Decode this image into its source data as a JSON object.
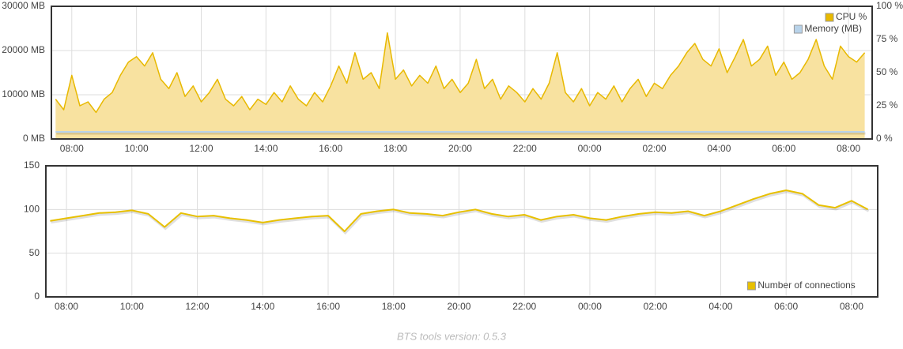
{
  "chart_data": [
    {
      "type": "line",
      "x": [
        7.5,
        7.75,
        8,
        8.25,
        8.5,
        8.75,
        9,
        9.25,
        9.5,
        9.75,
        10,
        10.25,
        10.5,
        10.75,
        11,
        11.25,
        11.5,
        11.75,
        12,
        12.25,
        12.5,
        12.75,
        13,
        13.25,
        13.5,
        13.75,
        14,
        14.25,
        14.5,
        14.75,
        15,
        15.25,
        15.5,
        15.75,
        16,
        16.25,
        16.5,
        16.75,
        17,
        17.25,
        17.5,
        17.75,
        18,
        18.25,
        18.5,
        18.75,
        19,
        19.25,
        19.5,
        19.75,
        20,
        20.25,
        20.5,
        20.75,
        21,
        21.25,
        21.5,
        21.75,
        22,
        22.25,
        22.5,
        22.75,
        23,
        23.25,
        23.5,
        23.75,
        24,
        24.25,
        24.5,
        24.75,
        25,
        25.25,
        25.5,
        25.75,
        26,
        26.25,
        26.5,
        26.75,
        27,
        27.25,
        27.5,
        27.75,
        28,
        28.25,
        28.5,
        28.75,
        29,
        29.25,
        29.5,
        29.75,
        30,
        30.25,
        30.5,
        30.75,
        31,
        31.25,
        31.5,
        31.75,
        32,
        32.25,
        32.5
      ],
      "series": [
        {
          "name": "CPU %",
          "color": "#e8b900",
          "fill": "#f8e2a0",
          "axis": "y2",
          "values": [
            30,
            22,
            48,
            25,
            28,
            20,
            30,
            35,
            48,
            58,
            62,
            55,
            65,
            45,
            38,
            50,
            32,
            40,
            28,
            35,
            45,
            30,
            25,
            32,
            22,
            30,
            26,
            35,
            28,
            40,
            30,
            25,
            35,
            28,
            40,
            55,
            42,
            65,
            45,
            50,
            38,
            80,
            45,
            52,
            40,
            48,
            42,
            55,
            38,
            45,
            35,
            42,
            60,
            38,
            45,
            30,
            40,
            35,
            28,
            38,
            30,
            42,
            65,
            35,
            28,
            38,
            25,
            35,
            30,
            40,
            28,
            38,
            45,
            32,
            42,
            38,
            48,
            55,
            65,
            72,
            60,
            55,
            68,
            50,
            62,
            75,
            55,
            60,
            70,
            48,
            58,
            45,
            50,
            60,
            75,
            55,
            45,
            70,
            62,
            58,
            65
          ]
        },
        {
          "name": "Memory (MB)",
          "color": "#b8d3ea",
          "values": [
            1600,
            1600,
            1600,
            1600,
            1600,
            1600,
            1600,
            1600,
            1600,
            1600,
            1600,
            1600,
            1600,
            1600,
            1600,
            1600,
            1600,
            1600,
            1600,
            1600,
            1600,
            1600,
            1600,
            1600,
            1600,
            1600,
            1600,
            1600,
            1600,
            1600,
            1600,
            1600,
            1600,
            1600,
            1600,
            1600,
            1600,
            1600,
            1600,
            1600,
            1600,
            1600,
            1600,
            1600,
            1600,
            1600,
            1600,
            1600,
            1600,
            1600,
            1600,
            1600,
            1600,
            1600,
            1600,
            1600,
            1600,
            1600,
            1600,
            1600,
            1600,
            1600,
            1600,
            1600,
            1600,
            1600,
            1600,
            1600,
            1600,
            1600,
            1600,
            1600,
            1600,
            1600,
            1600,
            1600,
            1600,
            1600,
            1600,
            1600,
            1600,
            1600,
            1600,
            1600,
            1600,
            1600,
            1600,
            1600,
            1600,
            1600,
            1600,
            1600,
            1600,
            1600,
            1600,
            1600,
            1600,
            1600,
            1600,
            1600,
            1600
          ]
        }
      ],
      "xlim": [
        7.37,
        32.73
      ],
      "xticks": [
        {
          "value": 8,
          "label": "08:00"
        },
        {
          "value": 10,
          "label": "10:00"
        },
        {
          "value": 12,
          "label": "12:00"
        },
        {
          "value": 14,
          "label": "14:00"
        },
        {
          "value": 16,
          "label": "16:00"
        },
        {
          "value": 18,
          "label": "18:00"
        },
        {
          "value": 20,
          "label": "20:00"
        },
        {
          "value": 22,
          "label": "22:00"
        },
        {
          "value": 24,
          "label": "00:00"
        },
        {
          "value": 26,
          "label": "02:00"
        },
        {
          "value": 28,
          "label": "04:00"
        },
        {
          "value": 30,
          "label": "06:00"
        },
        {
          "value": 32,
          "label": "08:00"
        }
      ],
      "ylim": [
        0,
        30000
      ],
      "yticks": [
        {
          "value": 0,
          "label": "0 MB"
        },
        {
          "value": 10000,
          "label": "10000 MB"
        },
        {
          "value": 20000,
          "label": "20000 MB"
        },
        {
          "value": 30000,
          "label": "30000 MB"
        }
      ],
      "y2lim": [
        0,
        100
      ],
      "y2ticks": [
        {
          "value": 0,
          "label": "0 %"
        },
        {
          "value": 25,
          "label": "25 %"
        },
        {
          "value": 50,
          "label": "50 %"
        },
        {
          "value": 75,
          "label": "75 %"
        },
        {
          "value": 100,
          "label": "100 %"
        }
      ],
      "grid": true,
      "legend": "top-right"
    },
    {
      "type": "line",
      "x": [
        7.5,
        8,
        8.5,
        9,
        9.5,
        10,
        10.5,
        11,
        11.5,
        12,
        12.5,
        13,
        13.5,
        14,
        14.5,
        15,
        15.5,
        16,
        16.5,
        17,
        17.5,
        18,
        18.5,
        19,
        19.5,
        20,
        20.5,
        21,
        21.5,
        22,
        22.5,
        23,
        23.5,
        24,
        24.5,
        25,
        25.5,
        26,
        26.5,
        27,
        27.5,
        28,
        28.5,
        29,
        29.5,
        30,
        30.5,
        31,
        31.5,
        32,
        32.5
      ],
      "series": [
        {
          "name": "Number of connections",
          "color": "#e8c000",
          "values": [
            87,
            90,
            93,
            96,
            97,
            99,
            95,
            80,
            96,
            92,
            93,
            90,
            88,
            85,
            88,
            90,
            92,
            93,
            75,
            95,
            98,
            100,
            96,
            95,
            93,
            97,
            100,
            95,
            92,
            94,
            88,
            92,
            94,
            90,
            88,
            92,
            95,
            97,
            96,
            98,
            93,
            98,
            105,
            112,
            118,
            122,
            118,
            105,
            102,
            110,
            100
          ]
        }
      ],
      "xlim": [
        7.37,
        32.8
      ],
      "xticks": [
        {
          "value": 8,
          "label": "08:00"
        },
        {
          "value": 10,
          "label": "10:00"
        },
        {
          "value": 12,
          "label": "12:00"
        },
        {
          "value": 14,
          "label": "14:00"
        },
        {
          "value": 16,
          "label": "16:00"
        },
        {
          "value": 18,
          "label": "18:00"
        },
        {
          "value": 20,
          "label": "20:00"
        },
        {
          "value": 22,
          "label": "22:00"
        },
        {
          "value": 24,
          "label": "00:00"
        },
        {
          "value": 26,
          "label": "02:00"
        },
        {
          "value": 28,
          "label": "04:00"
        },
        {
          "value": 30,
          "label": "06:00"
        },
        {
          "value": 32,
          "label": "08:00"
        }
      ],
      "ylim": [
        0,
        150
      ],
      "yticks": [
        0,
        50,
        100,
        150
      ],
      "grid": true,
      "legend": "bottom-right"
    }
  ],
  "footer": "BTS tools version: 0.5.3"
}
